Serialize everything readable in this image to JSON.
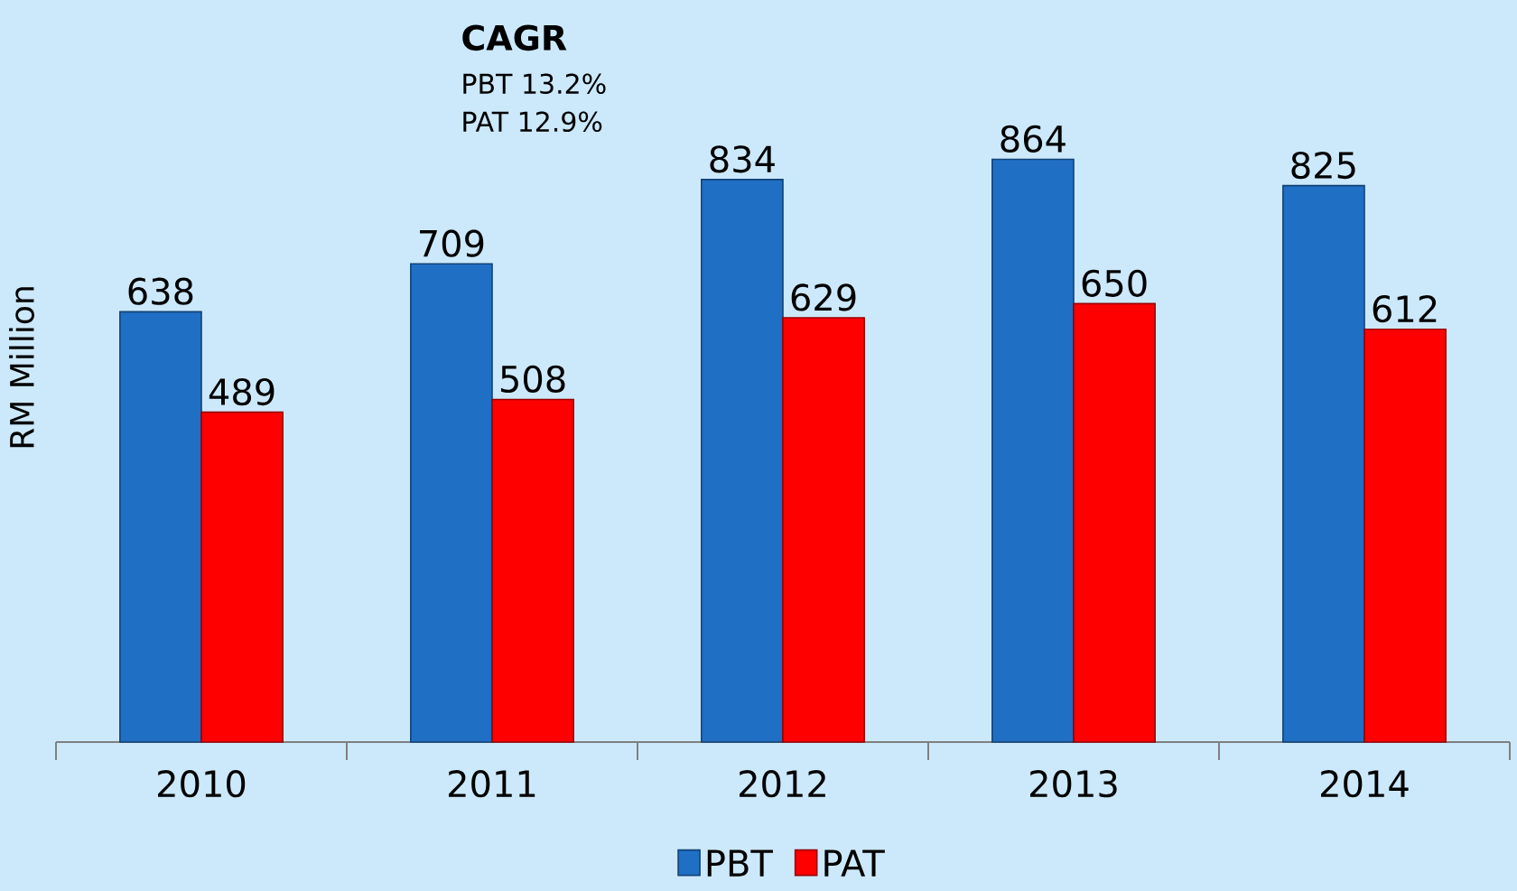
{
  "chart_data": {
    "type": "bar",
    "ylabel": "RM Million",
    "categories": [
      "2010",
      "2011",
      "2012",
      "2013",
      "2014"
    ],
    "series": [
      {
        "name": "PBT",
        "color": "#1f6fc5",
        "values": [
          638,
          709,
          834,
          864,
          825
        ]
      },
      {
        "name": "PAT",
        "color": "#ff0000",
        "values": [
          489,
          508,
          629,
          650,
          612
        ]
      }
    ],
    "data_labels": true,
    "legend": "bottom",
    "grid": false,
    "annotations": [
      "CAGR",
      "PBT   13.2%",
      "PAT    12.9%"
    ]
  }
}
